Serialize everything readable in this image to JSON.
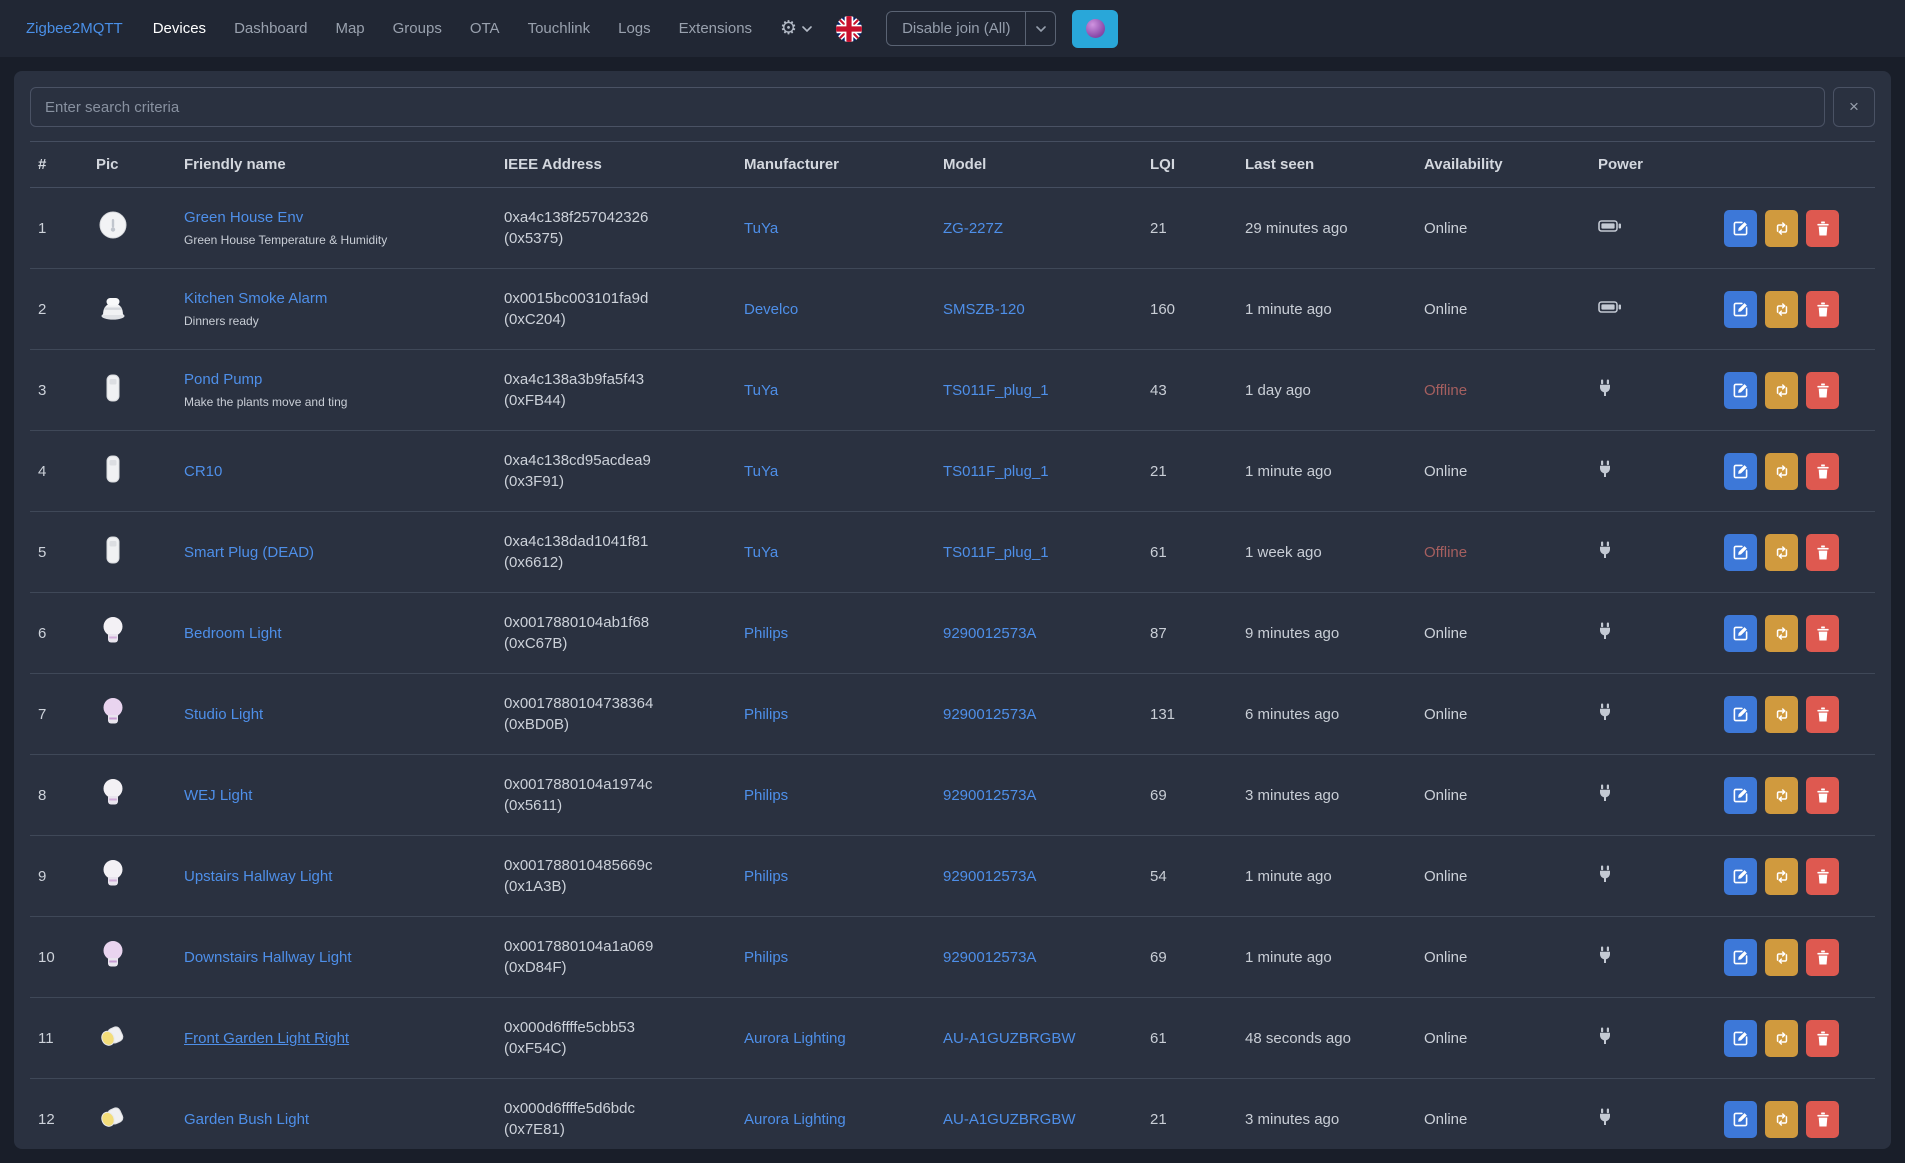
{
  "navbar": {
    "brand": "Zigbee2MQTT",
    "items": [
      {
        "label": "Devices",
        "active": true
      },
      {
        "label": "Dashboard",
        "active": false
      },
      {
        "label": "Map",
        "active": false
      },
      {
        "label": "Groups",
        "active": false
      },
      {
        "label": "OTA",
        "active": false
      },
      {
        "label": "Touchlink",
        "active": false
      },
      {
        "label": "Logs",
        "active": false
      },
      {
        "label": "Extensions",
        "active": false
      }
    ],
    "permit_join_label": "Disable join (All)",
    "icons": {
      "settings": "gear-icon",
      "settings_caret": "chevron-down-icon",
      "language": "uk-flag-icon",
      "join_caret": "chevron-down-icon",
      "theme": "sphere-icon"
    }
  },
  "search": {
    "placeholder": "Enter search criteria",
    "clear_icon": "close-icon",
    "clear_glyph": "×"
  },
  "table": {
    "headers": [
      "#",
      "Pic",
      "Friendly name",
      "IEEE Address",
      "Manufacturer",
      "Model",
      "LQI",
      "Last seen",
      "Availability",
      "Power",
      ""
    ],
    "action_icons": {
      "edit": "edit-icon",
      "reconfigure": "swap-arrows-icon",
      "remove": "trash-icon"
    },
    "power_icons": {
      "battery": "battery-icon",
      "plug": "plug-icon"
    },
    "rows": [
      {
        "num": "1",
        "pic": "sensor",
        "name": "Green House Env",
        "description": "Green House Temperature & Humidity",
        "ieee": "0xa4c138f257042326",
        "short": "(0x5375)",
        "manufacturer": "TuYa",
        "model": "ZG-227Z",
        "lqi": "21",
        "last_seen": "29 minutes ago",
        "availability": "Online",
        "power": "battery",
        "underlined": false
      },
      {
        "num": "2",
        "pic": "smoke",
        "name": "Kitchen Smoke Alarm",
        "description": "Dinners ready",
        "ieee": "0x0015bc003101fa9d",
        "short": "(0xC204)",
        "manufacturer": "Develco",
        "model": "SMSZB-120",
        "lqi": "160",
        "last_seen": "1 minute ago",
        "availability": "Online",
        "power": "battery",
        "underlined": false
      },
      {
        "num": "3",
        "pic": "plugdev",
        "name": "Pond Pump",
        "description": "Make the plants move and ting",
        "ieee": "0xa4c138a3b9fa5f43",
        "short": "(0xFB44)",
        "manufacturer": "TuYa",
        "model": "TS011F_plug_1",
        "lqi": "43",
        "last_seen": "1 day ago",
        "availability": "Offline",
        "power": "plug",
        "underlined": false
      },
      {
        "num": "4",
        "pic": "plugdev",
        "name": "CR10",
        "description": "",
        "ieee": "0xa4c138cd95acdea9",
        "short": "(0x3F91)",
        "manufacturer": "TuYa",
        "model": "TS011F_plug_1",
        "lqi": "21",
        "last_seen": "1 minute ago",
        "availability": "Online",
        "power": "plug",
        "underlined": false
      },
      {
        "num": "5",
        "pic": "plugdev",
        "name": "Smart Plug (DEAD)",
        "description": "",
        "ieee": "0xa4c138dad1041f81",
        "short": "(0x6612)",
        "manufacturer": "TuYa",
        "model": "TS011F_plug_1",
        "lqi": "61",
        "last_seen": "1 week ago",
        "availability": "Offline",
        "power": "plug",
        "underlined": false
      },
      {
        "num": "6",
        "pic": "bulb",
        "name": "Bedroom Light",
        "description": "",
        "ieee": "0x0017880104ab1f68",
        "short": "(0xC67B)",
        "manufacturer": "Philips",
        "model": "9290012573A",
        "lqi": "87",
        "last_seen": "9 minutes ago",
        "availability": "Online",
        "power": "plug",
        "underlined": false
      },
      {
        "num": "7",
        "pic": "bulbcolor",
        "name": "Studio Light",
        "description": "",
        "ieee": "0x0017880104738364",
        "short": "(0xBD0B)",
        "manufacturer": "Philips",
        "model": "9290012573A",
        "lqi": "131",
        "last_seen": "6 minutes ago",
        "availability": "Online",
        "power": "plug",
        "underlined": false
      },
      {
        "num": "8",
        "pic": "bulb",
        "name": "WEJ Light",
        "description": "",
        "ieee": "0x0017880104a1974c",
        "short": "(0x5611)",
        "manufacturer": "Philips",
        "model": "9290012573A",
        "lqi": "69",
        "last_seen": "3 minutes ago",
        "availability": "Online",
        "power": "plug",
        "underlined": false
      },
      {
        "num": "9",
        "pic": "bulb",
        "name": "Upstairs Hallway Light",
        "description": "",
        "ieee": "0x001788010485669c",
        "short": "(0x1A3B)",
        "manufacturer": "Philips",
        "model": "9290012573A",
        "lqi": "54",
        "last_seen": "1 minute ago",
        "availability": "Online",
        "power": "plug",
        "underlined": false
      },
      {
        "num": "10",
        "pic": "bulbcolor",
        "name": "Downstairs Hallway Light",
        "description": "",
        "ieee": "0x0017880104a1a069",
        "short": "(0xD84F)",
        "manufacturer": "Philips",
        "model": "9290012573A",
        "lqi": "69",
        "last_seen": "1 minute ago",
        "availability": "Online",
        "power": "plug",
        "underlined": false
      },
      {
        "num": "11",
        "pic": "spot",
        "name": "Front Garden Light Right",
        "description": "",
        "ieee": "0x000d6ffffe5cbb53",
        "short": "(0xF54C)",
        "manufacturer": "Aurora Lighting",
        "model": "AU-A1GUZBRGBW",
        "lqi": "61",
        "last_seen": "48 seconds ago",
        "availability": "Online",
        "power": "plug",
        "underlined": true
      },
      {
        "num": "12",
        "pic": "spot",
        "name": "Garden Bush Light",
        "description": "",
        "ieee": "0x000d6ffffe5d6bdc",
        "short": "(0x7E81)",
        "manufacturer": "Aurora Lighting",
        "model": "AU-A1GUZBRGBW",
        "lqi": "21",
        "last_seen": "3 minutes ago",
        "availability": "Online",
        "power": "plug",
        "underlined": false
      }
    ]
  },
  "colors": {
    "accent_link": "#4e8fe9",
    "primary_button": "#3d78d8",
    "warning_button": "#d09a3e",
    "danger_button": "#de5950",
    "info_button": "#29a7d9",
    "offline_text": "#a55f5f",
    "card_bg": "#2a3140",
    "page_bg": "#191e29"
  }
}
